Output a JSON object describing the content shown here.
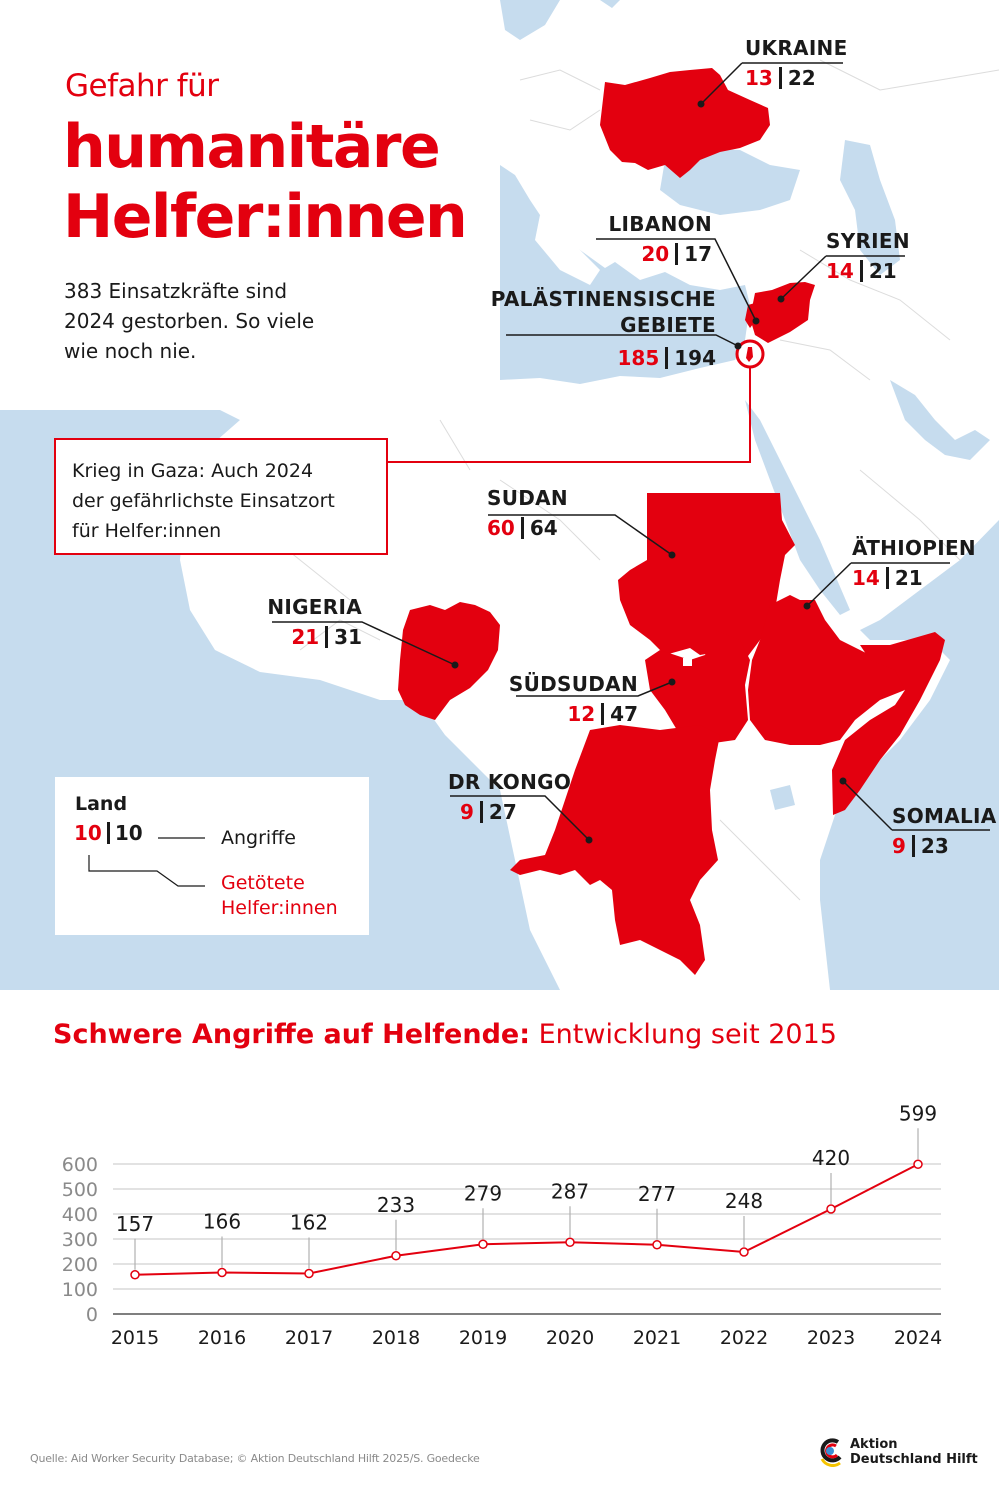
{
  "header": {
    "kicker": "Gefahr für",
    "title_line1": "humanitäre",
    "title_line2": "Helfer:innen",
    "intro_line1": "383 Einsatzkräfte sind",
    "intro_line2": "2024 gestorben. So viele",
    "intro_line3": "wie noch nie."
  },
  "callout": {
    "line1": "Krieg in Gaza: Auch 2024",
    "line2": "der gefährlichste Einsatzort",
    "line3": "für Helfer:innen"
  },
  "countries": [
    {
      "name": "UKRAINE",
      "killed": "13",
      "attacks": "22"
    },
    {
      "name": "LIBANON",
      "killed": "20",
      "attacks": "17"
    },
    {
      "name": "SYRIEN",
      "killed": "14",
      "attacks": "21"
    },
    {
      "name_line1": "PALÄSTINENSISCHE",
      "name_line2": "GEBIETE",
      "killed": "185",
      "attacks": "194"
    },
    {
      "name": "SUDAN",
      "killed": "60",
      "attacks": "64"
    },
    {
      "name": "ÄTHIOPIEN",
      "killed": "14",
      "attacks": "21"
    },
    {
      "name": "NIGERIA",
      "killed": "21",
      "attacks": "31"
    },
    {
      "name": "SÜDSUDAN",
      "killed": "12",
      "attacks": "47"
    },
    {
      "name": "DR KONGO",
      "killed": "9",
      "attacks": "27"
    },
    {
      "name": "SOMALIA",
      "killed": "9",
      "attacks": "23"
    }
  ],
  "legend": {
    "title": "Land",
    "killed_example": "10",
    "attacks_example": "10",
    "attacks_label": "Angriffe",
    "killed_label_line1": "Getötete",
    "killed_label_line2": "Helfer:innen"
  },
  "chart": {
    "title_bold": "Schwere Angriffe auf Helfende:",
    "title_regular": " Entwicklung seit 2015"
  },
  "chart_data": {
    "type": "line",
    "title": "Schwere Angriffe auf Helfende: Entwicklung seit 2015",
    "xlabel": "",
    "ylabel": "",
    "categories": [
      "2015",
      "2016",
      "2017",
      "2018",
      "2019",
      "2020",
      "2021",
      "2022",
      "2023",
      "2024"
    ],
    "values": [
      157,
      166,
      162,
      233,
      279,
      287,
      277,
      248,
      420,
      599
    ],
    "yticks": [
      0,
      100,
      200,
      300,
      400,
      500,
      600
    ],
    "ylim": [
      0,
      600
    ],
    "grid": true,
    "data_labels": true,
    "line_color": "#e3000f"
  },
  "footer": {
    "source": "Quelle: Aid Worker Security Database; © Aktion Deutschland Hilft 2025/S. Goedecke",
    "logo_line1": "Aktion",
    "logo_line2": "Deutschland Hilft"
  },
  "colors": {
    "accent_red": "#e3000f",
    "water_blue": "#c6dcee",
    "text_dark": "#1a1a1a",
    "grid_gray": "#d0d0d0"
  }
}
